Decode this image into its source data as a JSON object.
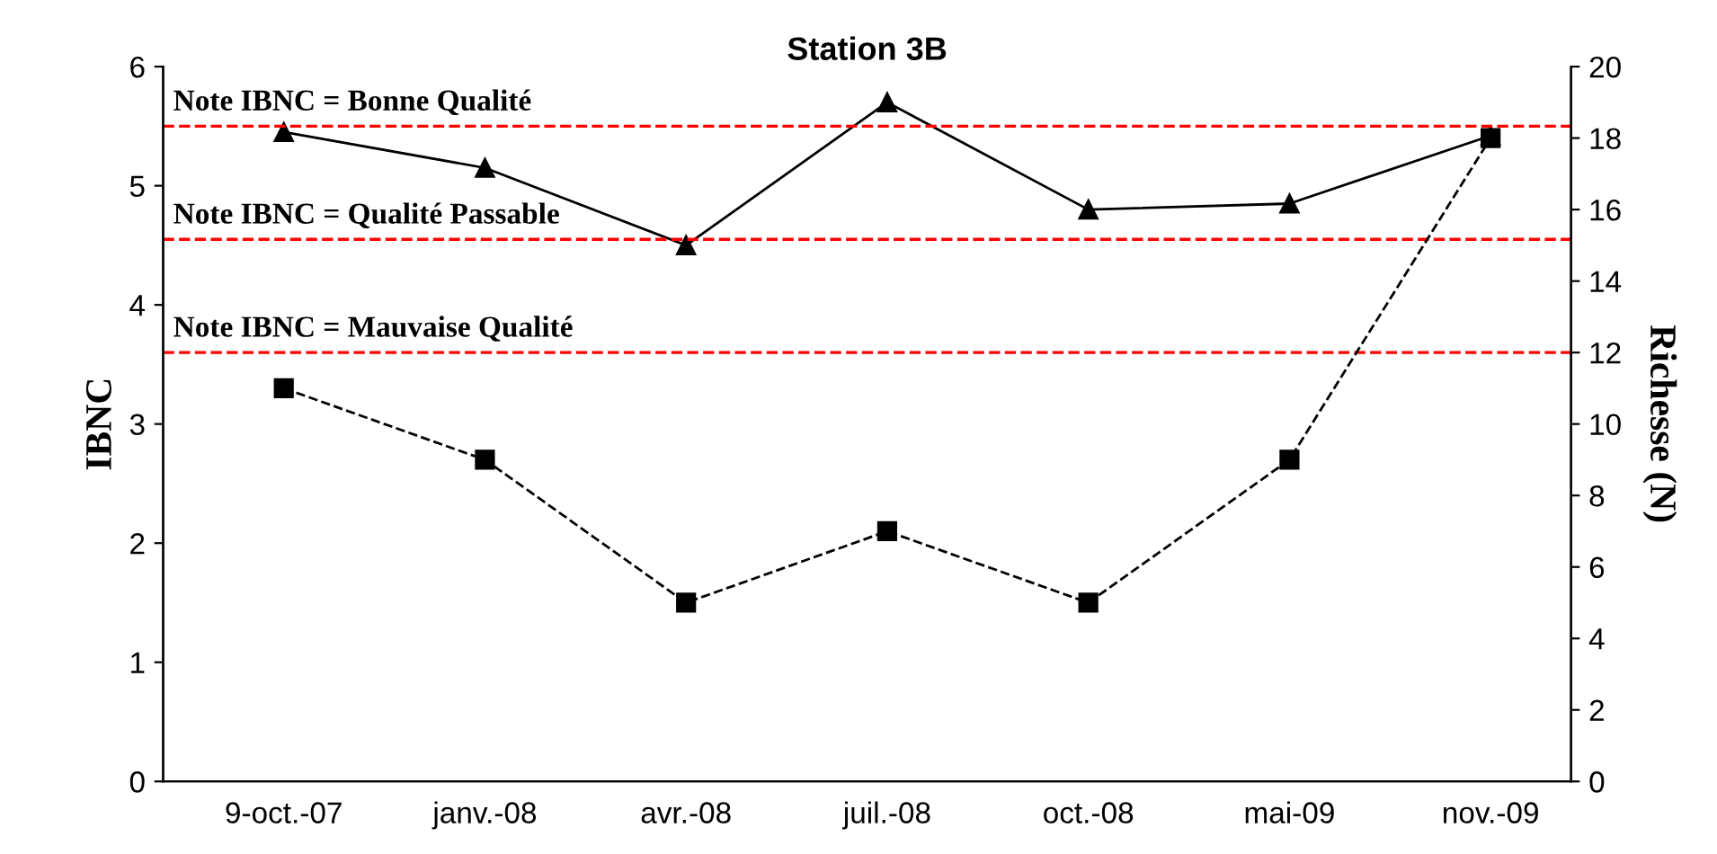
{
  "chart_data": {
    "type": "line",
    "title": "Station 3B",
    "ylabel": "IBNC",
    "y2label": "Richesse (N)",
    "categories": [
      "9-oct.-07",
      "janv.-08",
      "avr.-08",
      "juil.-08",
      "oct.-08",
      "mai-09",
      "nov.-09"
    ],
    "series": [
      {
        "color": "#000000",
        "values": [
          5.45,
          5.15,
          4.5,
          5.7,
          4.8,
          4.85,
          5.42
        ],
        "marker": "triangle",
        "line_style": "solid"
      },
      {
        "color": "#000000",
        "values": [
          11,
          9,
          5,
          7,
          5,
          9,
          18
        ],
        "marker": "square",
        "line_style": "dashed",
        "axis": "y2"
      }
    ],
    "ylim": [
      0,
      6
    ],
    "yticks": [
      0,
      1,
      2,
      3,
      4,
      5,
      6
    ],
    "y2lim": [
      0,
      20
    ],
    "y2ticks": [
      0,
      2,
      4,
      6,
      8,
      10,
      12,
      14,
      16,
      18,
      20
    ],
    "ref_lines": [
      {
        "axis": "y",
        "value": 5.5,
        "label": "Note IBNC = Bonne Qualité",
        "color": "#ff0000",
        "line_style": "dashed"
      },
      {
        "axis": "y",
        "value": 4.55,
        "label": "Note IBNC = Qualité Passable",
        "color": "#ff0000",
        "line_style": "dashed"
      },
      {
        "axis": "y",
        "value": 3.6,
        "label": "Note IBNC = Mauvaise Qualité",
        "color": "#ff0000",
        "line_style": "dashed"
      }
    ],
    "grid": false,
    "legend": false
  }
}
